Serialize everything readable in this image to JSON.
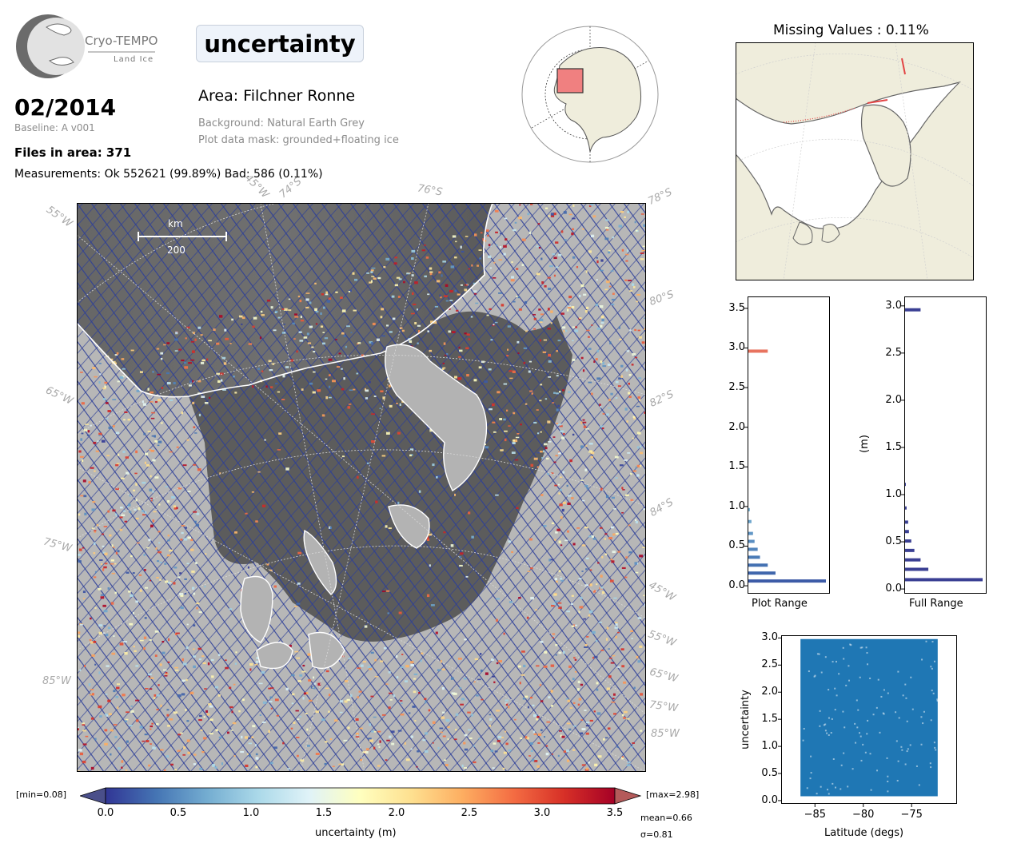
{
  "logo": {
    "name": "Cryo-TEMPO",
    "sub": "Land Ice"
  },
  "header": {
    "date": "02/2014",
    "baseline": "Baseline: A v001",
    "files": "Files in area: 371",
    "measurements": "Measurements: Ok 552621 (99.89%) Bad: 586 (0.11%)",
    "variable": "uncertainty",
    "area": "Area: Filchner Ronne",
    "background": "Background: Natural Earth Grey",
    "mask": "Plot data mask: grounded+floating ice"
  },
  "main_map": {
    "scale_unit": "km",
    "scale_value": "200",
    "lon_labels": [
      "55°W",
      "45°W",
      "74°S",
      "76°S",
      "78°S",
      "65°W",
      "75°W",
      "85°W"
    ],
    "lat_labels": [
      "80°S",
      "82°S",
      "84°S",
      "45°W",
      "55°W",
      "65°W",
      "75°W",
      "85°W"
    ],
    "colors": {
      "ocean": "#5e5e5e",
      "land": "#b9b9b9",
      "track": "#2d3f99"
    }
  },
  "colorbar": {
    "min_label": "[min=0.08]",
    "max_label": "[max=2.98]",
    "ticks": [
      "0.0",
      "0.5",
      "1.0",
      "1.5",
      "2.0",
      "2.5",
      "3.0",
      "3.5"
    ],
    "label": "uncertainty (m)",
    "mean": "mean=0.66",
    "sigma": "σ=0.81",
    "cmap": [
      "#313695",
      "#4575b4",
      "#74add1",
      "#abd9e9",
      "#e0f3f8",
      "#ffffbf",
      "#fee090",
      "#fdae61",
      "#f46d43",
      "#d73027",
      "#a50026"
    ]
  },
  "missing": {
    "title": "Missing Values : 0.11%"
  },
  "chart_data": [
    {
      "type": "bar",
      "orientation": "horizontal",
      "xlabel": "Plot Range",
      "ylim": [
        -0.1,
        3.65
      ],
      "yticks": [
        "0.0",
        "0.5",
        "1.0",
        "1.5",
        "2.0",
        "2.5",
        "3.0",
        "3.5"
      ],
      "bins": [
        [
          0.05,
          1.0
        ],
        [
          0.15,
          0.35
        ],
        [
          0.25,
          0.25
        ],
        [
          0.35,
          0.15
        ],
        [
          0.45,
          0.12
        ],
        [
          0.55,
          0.08
        ],
        [
          0.65,
          0.06
        ],
        [
          0.8,
          0.04
        ],
        [
          0.95,
          0.02
        ],
        [
          2.95,
          0.25
        ]
      ]
    },
    {
      "type": "bar",
      "orientation": "horizontal",
      "xlabel": "Full Range",
      "ylabel": "(m)",
      "ylim": [
        -0.05,
        3.1
      ],
      "yticks": [
        "0.0",
        "0.5",
        "1.0",
        "1.5",
        "2.0",
        "2.5",
        "3.0"
      ],
      "bins": [
        [
          0.09,
          1.0
        ],
        [
          0.2,
          0.3
        ],
        [
          0.3,
          0.2
        ],
        [
          0.4,
          0.12
        ],
        [
          0.5,
          0.08
        ],
        [
          0.6,
          0.05
        ],
        [
          0.7,
          0.04
        ],
        [
          0.85,
          0.02
        ],
        [
          1.1,
          0.01
        ],
        [
          2.95,
          0.2
        ]
      ]
    },
    {
      "type": "scatter",
      "xlabel": "Latitude (degs)",
      "ylabel": "uncertainty",
      "xlim": [
        -88.5,
        -70.3
      ],
      "ylim": [
        -0.06,
        3.05
      ],
      "xticks": [
        "−85",
        "−80",
        "−75"
      ],
      "yticks": [
        "0.0",
        "0.5",
        "1.0",
        "1.5",
        "2.0",
        "2.5",
        "3.0"
      ],
      "x_range": [
        -86.5,
        -72.3
      ],
      "y_range": [
        0.08,
        2.98
      ],
      "color": "#1f77b4"
    }
  ]
}
